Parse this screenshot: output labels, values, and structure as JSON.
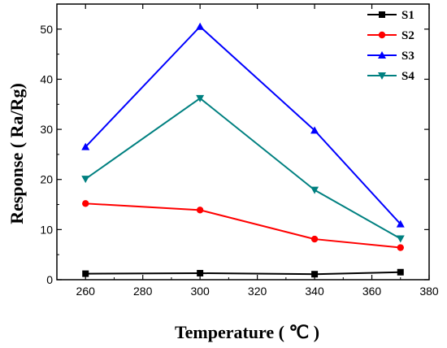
{
  "chart_data": {
    "type": "line",
    "xlabel": "Temperature ( ℃ )",
    "ylabel": "Response ( Ra/Rg)",
    "xlim": [
      250,
      380
    ],
    "ylim": [
      0,
      55
    ],
    "xticks": [
      260,
      280,
      300,
      320,
      340,
      360,
      380
    ],
    "yticks": [
      0,
      10,
      20,
      30,
      40,
      50
    ],
    "x": [
      260,
      300,
      340,
      370
    ],
    "legend_position": "top-right",
    "grid": false,
    "series": [
      {
        "name": "S1",
        "color": "#000000",
        "marker": "square",
        "values": [
          1.2,
          1.3,
          1.1,
          1.5
        ]
      },
      {
        "name": "S2",
        "color": "#ff0000",
        "marker": "circle",
        "values": [
          15.2,
          13.9,
          8.1,
          6.4
        ]
      },
      {
        "name": "S3",
        "color": "#0000ff",
        "marker": "triangle-up",
        "values": [
          26.5,
          50.5,
          29.8,
          11.1
        ]
      },
      {
        "name": "S4",
        "color": "#008080",
        "marker": "triangle-down",
        "values": [
          20.1,
          36.2,
          17.9,
          8.2
        ]
      }
    ]
  }
}
